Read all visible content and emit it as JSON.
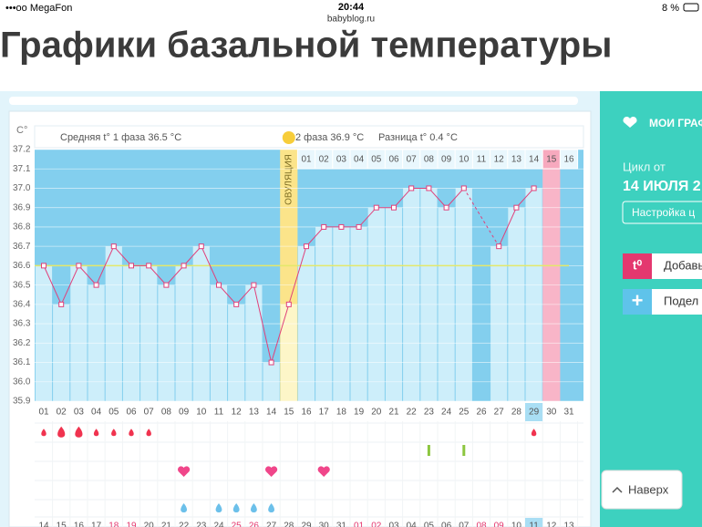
{
  "status_bar": {
    "carrier": "•••oo MegaFon",
    "time": "20:44",
    "url": "babyblog.ru",
    "battery": "8 %"
  },
  "page_title": "Графики базальной температуры",
  "chart_data": {
    "type": "line",
    "y_unit_label": "C°",
    "phase1_label": "Средняя t° 1 фаза 36.5 °C",
    "phase2_label": "2 фаза 36.9 °C",
    "difference_label": "Разница t° 0.4 °C",
    "ovulation_label": "ОВУЛЯЦИЯ",
    "categories": [
      "01",
      "02",
      "03",
      "04",
      "05",
      "06",
      "07",
      "08",
      "09",
      "10",
      "11",
      "12",
      "13",
      "14",
      "15",
      "16",
      "17",
      "18",
      "19",
      "20",
      "21",
      "22",
      "23",
      "24",
      "25",
      "26",
      "27",
      "28",
      "29",
      "30",
      "31"
    ],
    "values": [
      36.6,
      36.4,
      36.6,
      36.5,
      36.7,
      36.6,
      36.6,
      36.5,
      36.6,
      36.7,
      36.5,
      36.4,
      36.5,
      36.1,
      36.4,
      36.7,
      36.8,
      36.8,
      36.8,
      36.9,
      36.9,
      37.0,
      37.0,
      36.9,
      37.0,
      null,
      36.7,
      36.9,
      37.0,
      null,
      null
    ],
    "color": "#e0407a",
    "phase2_days": [
      "01",
      "02",
      "03",
      "04",
      "05",
      "06",
      "07",
      "08",
      "09",
      "10",
      "11",
      "12",
      "13",
      "14",
      "15",
      "16"
    ],
    "ylim": [
      35.9,
      37.2
    ],
    "yticks": [
      35.9,
      {
        "value": 36,
        "label": "36.0"
      },
      36.1,
      36.2,
      36.3,
      36.4,
      36.5,
      36.6,
      36.7,
      36.8,
      36.9,
      {
        "value": 37,
        "label": "37.0"
      },
      37.1,
      37.2
    ],
    "coverline": 36.6,
    "highlight_columns": [
      29
    ],
    "markers": {
      "bleeding": [
        0,
        1,
        2,
        3,
        4,
        5,
        6,
        28
      ],
      "test": [
        22,
        24
      ],
      "intercourse": [
        8,
        13,
        16
      ],
      "mucus": [
        8,
        10,
        11,
        12,
        13
      ]
    },
    "dates": [
      "14",
      "15",
      "16",
      "17",
      "18",
      "19",
      "20",
      "21",
      "22",
      "23",
      "24",
      "25",
      "26",
      "27",
      "28",
      "29",
      "30",
      "31",
      "01",
      "02",
      "03",
      "04",
      "05",
      "06",
      "07",
      "08",
      "09",
      "10",
      "11",
      "12",
      "13"
    ],
    "weekend_dates": [
      4,
      5,
      11,
      12,
      18,
      19,
      25,
      26
    ],
    "today_index": 28
  },
  "sidebar": {
    "heading": "МОИ ГРАФ",
    "cycle_label": "Цикл от",
    "cycle_date": "14 ИЮЛЯ 2",
    "settings_button": "Настройка ц",
    "add_icon": "t⁰",
    "add_button": "Добавь",
    "share_icon": "+",
    "share_button": "Подел",
    "back_to_top": "Наверх"
  }
}
